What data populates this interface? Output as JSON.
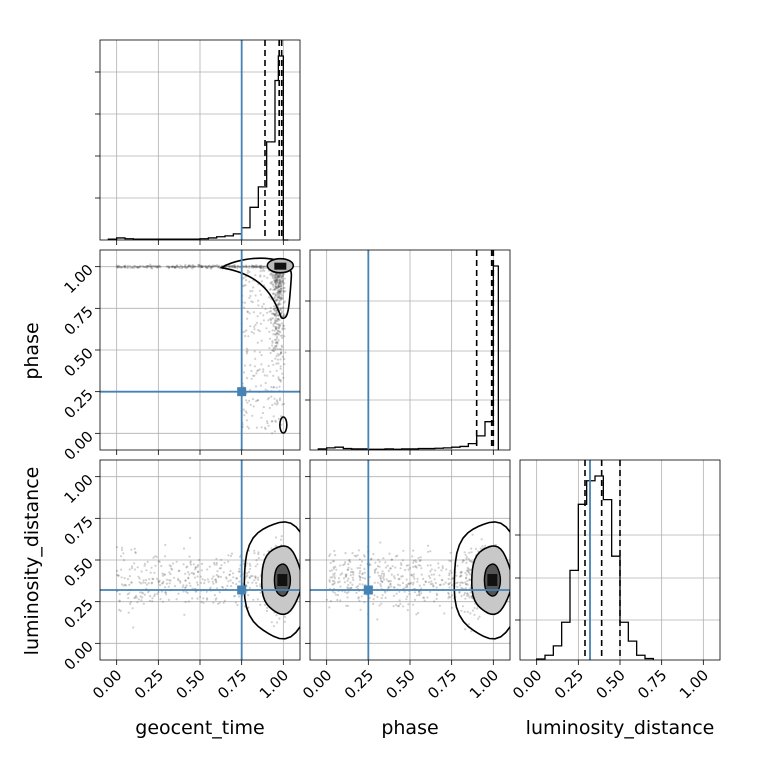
{
  "chart_data": {
    "type": "corner",
    "parameters": [
      "geocent_time",
      "phase",
      "luminosity_distance"
    ],
    "axis_ranges": {
      "geocent_time": [
        -0.1,
        1.1
      ],
      "phase": [
        -0.1,
        1.1
      ],
      "luminosity_distance": [
        -0.1,
        1.1
      ]
    },
    "tick_values": [
      0.0,
      0.25,
      0.5,
      0.75,
      1.0
    ],
    "tick_labels": [
      "0.00",
      "0.25",
      "0.50",
      "0.75",
      "1.00"
    ],
    "truths": {
      "geocent_time": 0.75,
      "phase": 0.25,
      "luminosity_distance": 0.32
    },
    "truth_color": "#4682b4",
    "sample_color": "#000000",
    "grid": true,
    "histograms": {
      "geocent_time": {
        "bin_edges": [
          -0.05,
          0.0,
          0.05,
          0.1,
          0.15,
          0.2,
          0.25,
          0.3,
          0.35,
          0.4,
          0.45,
          0.5,
          0.55,
          0.6,
          0.65,
          0.7,
          0.75,
          0.8,
          0.85,
          0.9,
          0.95,
          0.97,
          1.0,
          1.03
        ],
        "counts": [
          0.2,
          0.5,
          0.3,
          0.2,
          0.2,
          0.2,
          0.2,
          0.2,
          0.2,
          0.2,
          0.2,
          0.3,
          0.5,
          0.8,
          1.0,
          1.5,
          3,
          8,
          13,
          24,
          39,
          45,
          0
        ],
        "quantiles": [
          0.89,
          0.975,
          0.99
        ]
      },
      "phase": {
        "bin_edges": [
          -0.05,
          0.0,
          0.05,
          0.1,
          0.15,
          0.2,
          0.25,
          0.3,
          0.35,
          0.4,
          0.45,
          0.5,
          0.55,
          0.6,
          0.65,
          0.7,
          0.75,
          0.8,
          0.85,
          0.9,
          0.95,
          1.0,
          1.03
        ],
        "counts": [
          0.3,
          0.6,
          0.8,
          0.4,
          0.3,
          0.3,
          0.2,
          0.2,
          0.3,
          0.2,
          0.3,
          0.3,
          0.4,
          0.4,
          0.5,
          0.6,
          0.8,
          1.0,
          1.8,
          4,
          8,
          52
        ],
        "quantiles": [
          0.9,
          0.99,
          1.0
        ]
      },
      "luminosity_distance": {
        "bin_edges": [
          0.0,
          0.05,
          0.1,
          0.15,
          0.2,
          0.25,
          0.3,
          0.35,
          0.4,
          0.45,
          0.5,
          0.55,
          0.6,
          0.65,
          0.7
        ],
        "counts": [
          0.2,
          1,
          3,
          8,
          19,
          33,
          38,
          39,
          34,
          22,
          8,
          4,
          1,
          0.3
        ],
        "quantiles": [
          0.29,
          0.39,
          0.5
        ]
      }
    },
    "panels_2d": [
      {
        "x": "geocent_time",
        "y": "phase",
        "mode_x": 1.0,
        "mode_y": 1.0,
        "secondary_mode_y": 0.05
      },
      {
        "x": "geocent_time",
        "y": "luminosity_distance",
        "mode_x": 1.0,
        "mode_y": 0.38
      },
      {
        "x": "phase",
        "y": "luminosity_distance",
        "mode_x": 1.0,
        "mode_y": 0.38
      }
    ]
  }
}
